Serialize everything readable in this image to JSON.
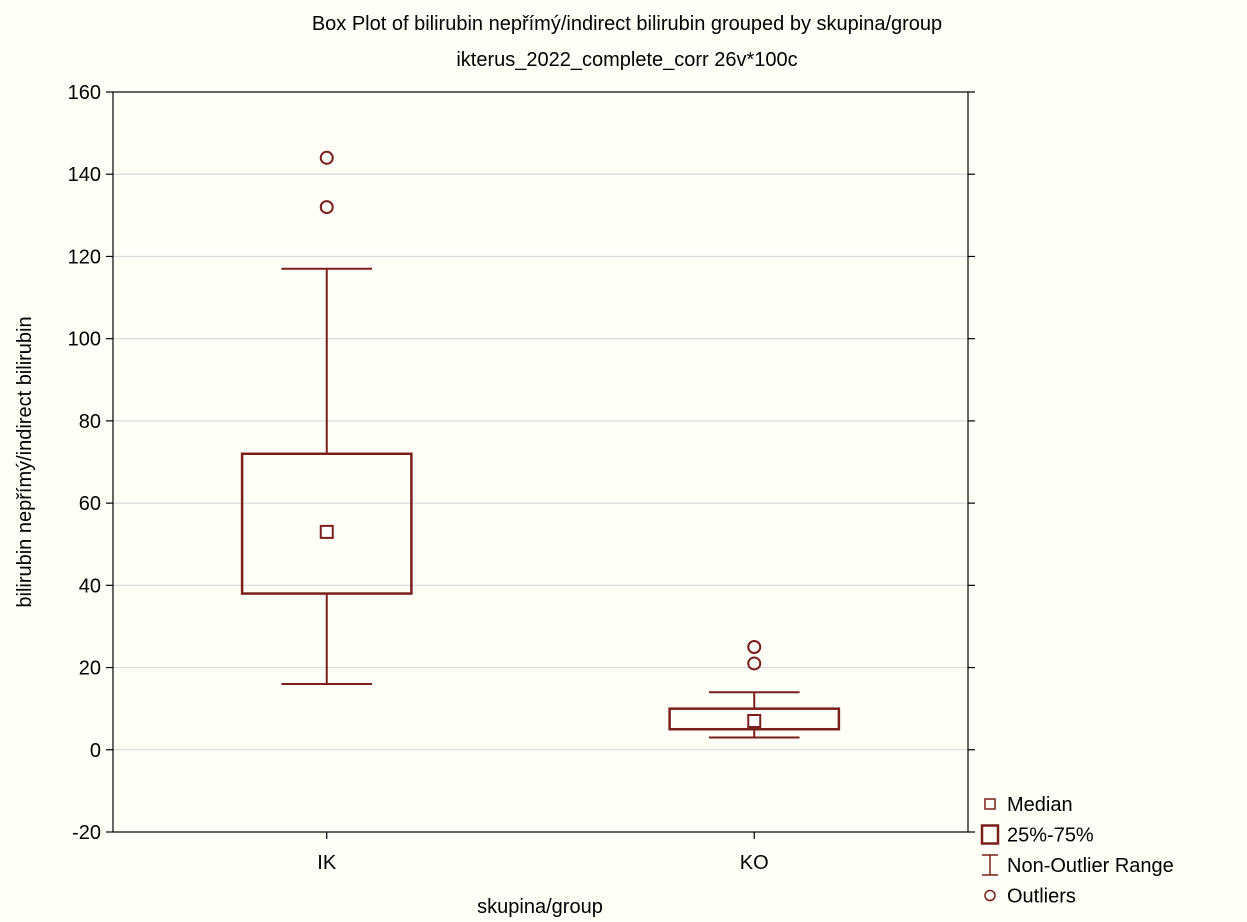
{
  "chart_data": {
    "type": "box",
    "title": "Box Plot of bilirubin nepřímý/indirect bilirubin grouped by  skupina/group",
    "subtitle": "ikterus_2022_complete_corr 26v*100c",
    "xlabel": "skupina/group",
    "ylabel": "bilirubin nepřímý/indirect bilirubin",
    "ylim": [
      -20,
      160
    ],
    "yticks": [
      -20,
      0,
      20,
      40,
      60,
      80,
      100,
      120,
      140,
      160
    ],
    "grid": true,
    "categories": [
      "IK",
      "KO"
    ],
    "boxes": [
      {
        "category": "IK",
        "median": 53,
        "q1": 38,
        "q3": 72,
        "whisker_low": 16,
        "whisker_high": 117,
        "outliers": [
          132,
          144
        ]
      },
      {
        "category": "KO",
        "median": 7,
        "q1": 5,
        "q3": 10,
        "whisker_low": 3,
        "whisker_high": 14,
        "outliers": [
          21,
          25
        ]
      }
    ],
    "legend": {
      "placement": "bottom-right",
      "items": [
        {
          "label": "Median",
          "symbol": "small-square"
        },
        {
          "label": "25%-75%",
          "symbol": "box"
        },
        {
          "label": "Non-Outlier Range",
          "symbol": "whisker"
        },
        {
          "label": "Outliers",
          "symbol": "circle"
        }
      ]
    },
    "colors": {
      "series": "#7a1e1e",
      "background": "#fffff7",
      "grid": "#d9d9d9"
    }
  }
}
